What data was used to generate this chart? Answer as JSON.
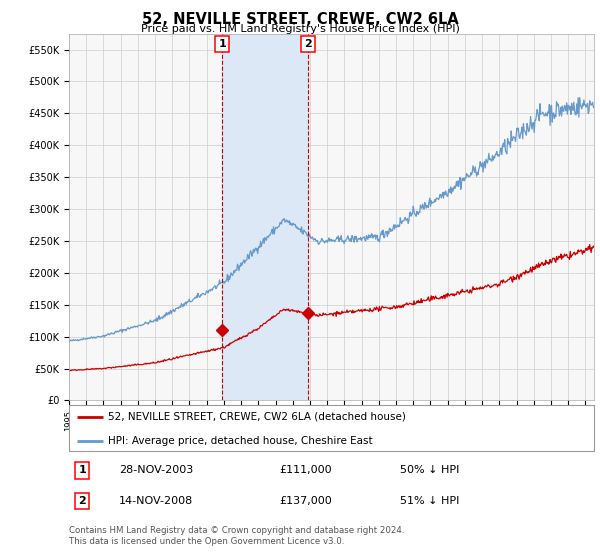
{
  "title": "52, NEVILLE STREET, CREWE, CW2 6LA",
  "subtitle": "Price paid vs. HM Land Registry's House Price Index (HPI)",
  "red_label": "52, NEVILLE STREET, CREWE, CW2 6LA (detached house)",
  "blue_label": "HPI: Average price, detached house, Cheshire East",
  "transaction1_date": "28-NOV-2003",
  "transaction1_price": 111000,
  "transaction1_hpi": "50% ↓ HPI",
  "transaction1_year": 2003.91,
  "transaction2_date": "14-NOV-2008",
  "transaction2_price": 137000,
  "transaction2_hpi": "51% ↓ HPI",
  "transaction2_year": 2008.87,
  "ylim": [
    0,
    575000
  ],
  "xlim_start": 1995.0,
  "xlim_end": 2025.5,
  "background_color": "#ffffff",
  "grid_color": "#cccccc",
  "red_color": "#cc0000",
  "blue_color": "#6699cc",
  "shade_color": "#dce8f5",
  "vline_color": "#cc0000",
  "footnote": "Contains HM Land Registry data © Crown copyright and database right 2024.\nThis data is licensed under the Open Government Licence v3.0."
}
